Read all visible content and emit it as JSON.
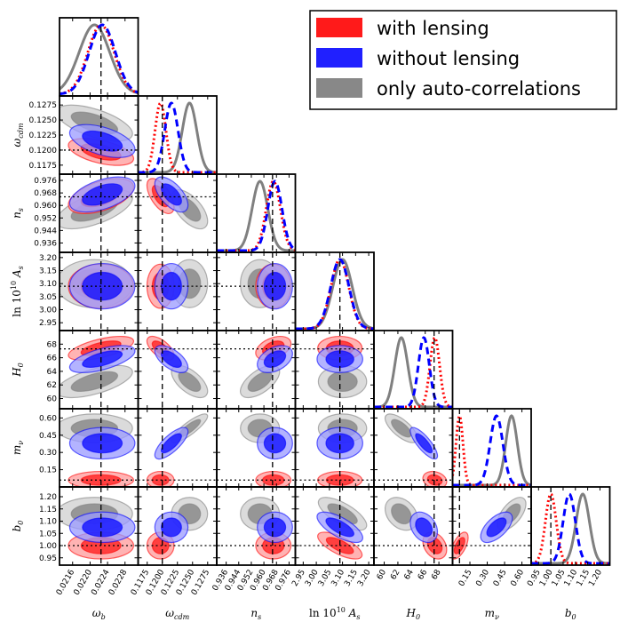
{
  "chart_data": {
    "type": "corner",
    "params": [
      {
        "label": "ω_b",
        "label_main": "ω",
        "label_sub": "b",
        "range": [
          0.0213,
          0.0231
        ],
        "ticks": [
          "0.0216",
          "0.0220",
          "0.0224",
          "0.0228"
        ],
        "fiducial": 0.02225
      },
      {
        "label": "ω_cdm",
        "label_main": "ω",
        "label_sub": "cdm",
        "range": [
          0.116,
          0.129
        ],
        "ticks": [
          "0.1175",
          "0.1200",
          "0.1225",
          "0.1250",
          "0.1275"
        ],
        "fiducial": 0.12
      },
      {
        "label": "n_s",
        "label_main": "n",
        "label_sub": "s",
        "range": [
          0.93,
          0.98
        ],
        "ticks": [
          "0.936",
          "0.944",
          "0.952",
          "0.960",
          "0.968",
          "0.976"
        ],
        "fiducial": 0.9655
      },
      {
        "label": "ln 10^10 A_s",
        "label_main": "ln 10",
        "label_sup": "10",
        "label_main2": "A",
        "label_sub": "s",
        "range": [
          2.92,
          3.22
        ],
        "ticks": [
          "2.95",
          "3.00",
          "3.05",
          "3.10",
          "3.15",
          "3.20"
        ],
        "fiducial": 3.09
      },
      {
        "label": "H_0",
        "label_main": "H",
        "label_sub": "0",
        "range": [
          58.5,
          70.0
        ],
        "ticks": [
          "60",
          "62",
          "64",
          "66",
          "68"
        ],
        "fiducial": 67.3
      },
      {
        "label": "m_ν",
        "label_main": "m",
        "label_sub": "ν",
        "range": [
          0.0,
          0.68
        ],
        "ticks": [
          "0.15",
          "0.30",
          "0.45",
          "0.60"
        ],
        "fiducial": 0.06
      },
      {
        "label": "b_0",
        "label_main": "b",
        "label_sub": "0",
        "range": [
          0.92,
          1.24
        ],
        "ticks": [
          "0.95",
          "1.00",
          "1.05",
          "1.10",
          "1.15",
          "1.20"
        ],
        "fiducial": 1.0
      }
    ],
    "series": [
      {
        "name": "with lensing",
        "color": "#ff0000",
        "line": "dotted",
        "means": [
          0.02225,
          0.1197,
          0.966,
          3.09,
          67.4,
          0.06,
          1.0
        ],
        "sigmas": [
          0.0003,
          0.0009,
          0.0045,
          0.034,
          0.7,
          0.03,
          0.022
        ]
      },
      {
        "name": "without lensing",
        "color": "#0000ff",
        "line": "dashed",
        "means": [
          0.02228,
          0.1215,
          0.967,
          3.09,
          65.8,
          0.38,
          1.075
        ],
        "sigmas": [
          0.0003,
          0.0011,
          0.0045,
          0.035,
          0.8,
          0.055,
          0.025
        ]
      },
      {
        "name": "only auto-correlations",
        "color": "#808080",
        "line": "solid",
        "means": [
          0.0221,
          0.1245,
          0.9575,
          3.1,
          62.5,
          0.51,
          1.13
        ],
        "sigmas": [
          0.00035,
          0.0012,
          0.005,
          0.037,
          0.95,
          0.05,
          0.027
        ]
      }
    ],
    "legend": "top-right",
    "grid": false
  }
}
